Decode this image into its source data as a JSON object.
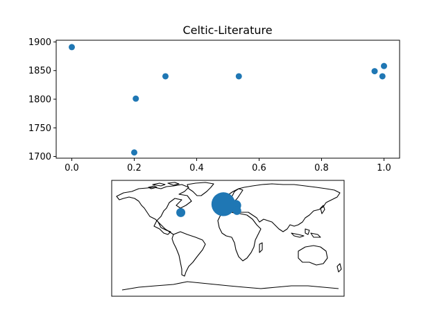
{
  "chart_data": [
    {
      "type": "scatter",
      "title": "Celtic-Literature",
      "xlabel": "",
      "ylabel": "",
      "xlim": [
        -0.05,
        1.05
      ],
      "ylim": [
        1697,
        1903
      ],
      "xticks": [
        0.0,
        0.2,
        0.4,
        0.6,
        0.8,
        1.0
      ],
      "xtick_labels": [
        "0.0",
        "0.2",
        "0.4",
        "0.6",
        "0.8",
        "1.0"
      ],
      "yticks": [
        1700,
        1750,
        1800,
        1850,
        1900
      ],
      "ytick_labels": [
        "1700",
        "1750",
        "1800",
        "1850",
        "1900"
      ],
      "grid": false,
      "color": "#1f77b4",
      "points": [
        {
          "x": 0.0,
          "y": 1891
        },
        {
          "x": 0.2,
          "y": 1707
        },
        {
          "x": 0.205,
          "y": 1801
        },
        {
          "x": 0.3,
          "y": 1840
        },
        {
          "x": 0.535,
          "y": 1840
        },
        {
          "x": 0.97,
          "y": 1849
        },
        {
          "x": 0.995,
          "y": 1840
        },
        {
          "x": 1.0,
          "y": 1858
        }
      ]
    },
    {
      "type": "scatter",
      "subtype": "geographic-bubble-map",
      "projection": "equirectangular",
      "lon_range": [
        -180,
        180
      ],
      "lat_range": [
        -90,
        90
      ],
      "color": "#1f77b4",
      "bubbles": [
        {
          "lon": -73,
          "lat": 40,
          "size": 1
        },
        {
          "lon": -7,
          "lat": 53,
          "size": 7
        },
        {
          "lon": 12,
          "lat": 51,
          "size": 1.5
        },
        {
          "lon": 14,
          "lat": 43,
          "size": 0.9
        }
      ]
    }
  ]
}
